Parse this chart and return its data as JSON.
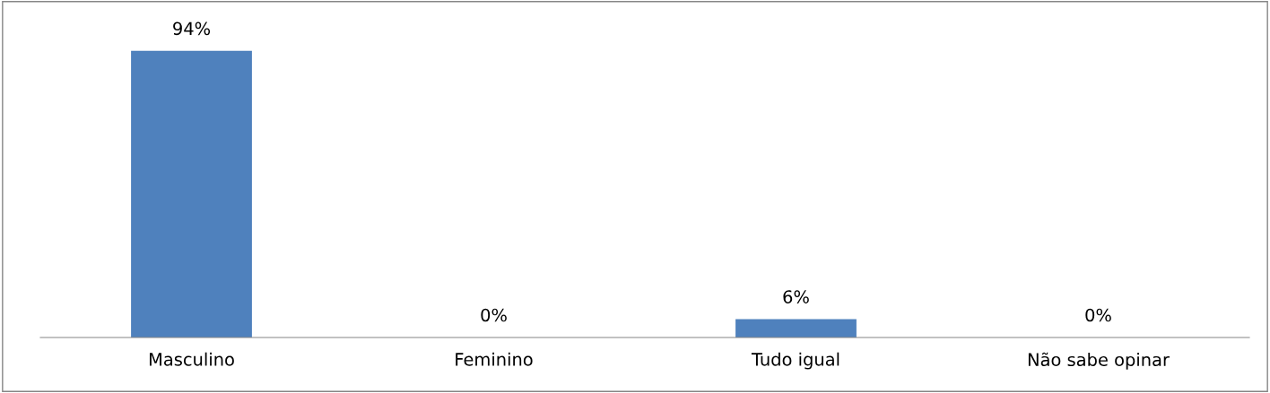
{
  "chart_data": {
    "type": "bar",
    "categories": [
      "Masculino",
      "Feminino",
      "Tudo igual",
      "Não sabe opinar"
    ],
    "values": [
      94,
      0,
      6,
      0
    ],
    "value_labels": [
      "94%",
      "0%",
      "6%",
      "0%"
    ],
    "color": "#4f81bd",
    "grid": false,
    "legend": false
  }
}
